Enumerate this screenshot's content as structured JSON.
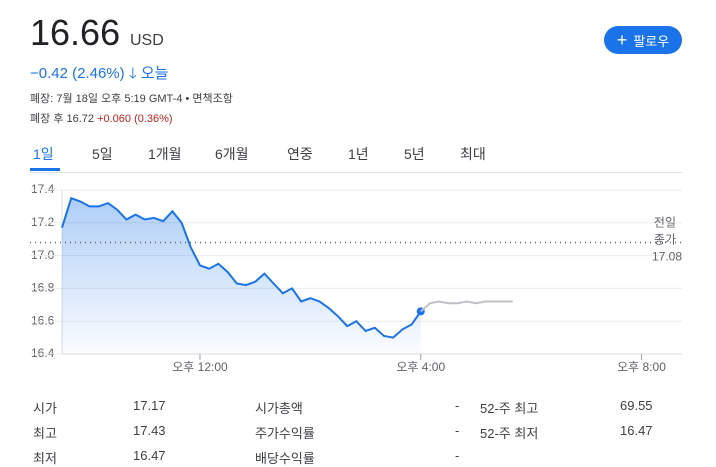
{
  "header": {
    "price": "16.66",
    "currency": "USD",
    "change": "−0.42 (2.46%)",
    "period": "오늘",
    "status": "폐장: 7월 18일 오후 5:19 GMT-4 • 면책조항",
    "after_hours": "폐장 후 16.72",
    "after_hours_change": "+0.060 (0.36%)",
    "follow": "팔로우"
  },
  "tabs": [
    "1일",
    "5일",
    "1개월",
    "6개월",
    "연중",
    "1년",
    "5년",
    "최대"
  ],
  "chart_data": {
    "type": "line",
    "ylim": [
      16.4,
      17.4
    ],
    "yticks": [
      16.4,
      16.6,
      16.8,
      {
        "value": 17,
        "label": "17.0"
      },
      17.2,
      17.4
    ],
    "xlim": [
      570,
      1244
    ],
    "xticks": [
      {
        "value": 720,
        "label": "오후 12:00"
      },
      {
        "value": 960,
        "label": "오후 4:00"
      },
      {
        "value": 1200,
        "label": "오후 8:00"
      }
    ],
    "grid": true,
    "previous_close": 17.08,
    "previous_close_label": [
      "전일",
      "종가"
    ],
    "series": [
      {
        "color": "#1a73e8",
        "x": [
          570,
          580,
          590,
          600,
          610,
          620,
          630,
          640,
          650,
          660,
          670,
          680,
          690,
          700,
          710,
          720,
          730,
          740,
          750,
          760,
          770,
          780,
          790,
          800,
          810,
          820,
          830,
          840,
          850,
          860,
          870,
          880,
          890,
          900,
          910,
          920,
          930,
          940,
          950,
          960
        ],
        "values": [
          17.17,
          17.35,
          17.33,
          17.3,
          17.3,
          17.32,
          17.28,
          17.22,
          17.25,
          17.22,
          17.23,
          17.21,
          17.27,
          17.2,
          17.05,
          16.94,
          16.92,
          16.95,
          16.9,
          16.83,
          16.82,
          16.84,
          16.89,
          16.83,
          16.77,
          16.8,
          16.72,
          16.74,
          16.72,
          16.68,
          16.63,
          16.57,
          16.6,
          16.54,
          16.56,
          16.51,
          16.5,
          16.55,
          16.58,
          16.66
        ]
      },
      {
        "color": "#bdc1c6",
        "x": [
          960,
          970,
          980,
          990,
          1000,
          1010,
          1020,
          1030,
          1040,
          1050,
          1060
        ],
        "values": [
          16.66,
          16.71,
          16.72,
          16.71,
          16.71,
          16.72,
          16.71,
          16.72,
          16.72,
          16.72,
          16.72
        ]
      }
    ]
  },
  "stats": {
    "rows": [
      [
        "시가",
        "17.17",
        "시가총액",
        "-",
        "52-주 최고",
        "69.55"
      ],
      [
        "최고",
        "17.43",
        "주가수익률",
        "-",
        "52-주 최저",
        "16.47"
      ],
      [
        "최저",
        "16.47",
        "배당수익률",
        "-"
      ]
    ]
  }
}
